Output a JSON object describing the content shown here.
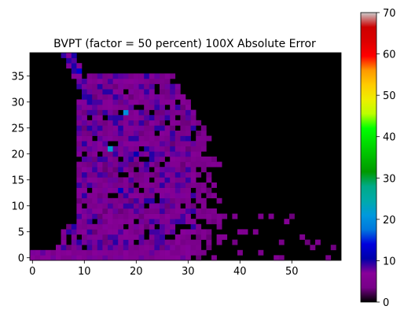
{
  "chart_data": {
    "type": "heatmap",
    "title": "BVPT (factor = 50 percent) 100X Absolute Error",
    "xlabel": "",
    "ylabel": "",
    "xlim": [
      -0.5,
      59.5
    ],
    "ylim": [
      -0.5,
      39.5
    ],
    "x_ticks": [
      0,
      10,
      20,
      30,
      40,
      50
    ],
    "y_ticks": [
      0,
      5,
      10,
      15,
      20,
      25,
      30,
      35
    ],
    "grid": false,
    "colormap": "nipy_spectral",
    "colorbar": {
      "min": 0,
      "max": 70,
      "ticks": [
        0,
        10,
        20,
        30,
        40,
        50,
        60,
        70
      ]
    },
    "grid_shape": {
      "cols": 60,
      "rows": 40
    },
    "hotspots": [
      {
        "x": 15,
        "y": 21,
        "value": 22
      },
      {
        "x": 18,
        "y": 28,
        "value": 20
      },
      {
        "x": 9,
        "y": 36,
        "value": 13
      },
      {
        "x": 17,
        "y": 13,
        "value": 12
      },
      {
        "x": 20,
        "y": 20,
        "value": 11
      }
    ],
    "typical_value_range": [
      0,
      12
    ]
  }
}
